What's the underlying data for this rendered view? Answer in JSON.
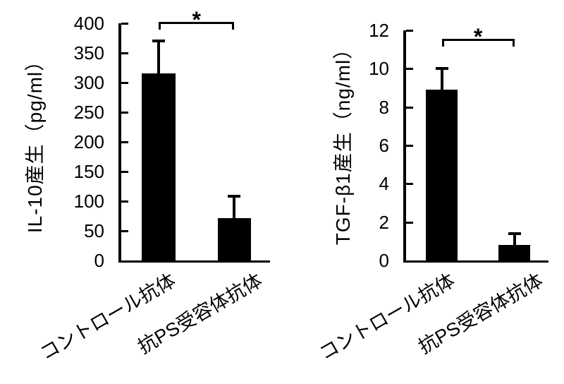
{
  "figure": {
    "background_color": "#ffffff",
    "ink_color": "#000000",
    "description_note": ""
  },
  "chart_data": [
    {
      "type": "bar",
      "title": "",
      "ylabel": "IL-10産生（pg/ml）",
      "xlabel": "",
      "categories": [
        "コントロール抗体",
        "抗PS受容体抗体"
      ],
      "values": [
        315,
        72
      ],
      "errors_upper": [
        55,
        36
      ],
      "ylim": [
        0,
        400
      ],
      "ytick_step": 50,
      "yticks": [
        0,
        50,
        100,
        150,
        200,
        250,
        300,
        350,
        400
      ],
      "bar_color": "#000000",
      "grid": false,
      "legend": null,
      "significance": {
        "label": "*",
        "between": [
          0,
          1
        ]
      }
    },
    {
      "type": "bar",
      "title": "",
      "ylabel": "TGF-β1産生（ng/ml）",
      "xlabel": "",
      "categories": [
        "コントロール抗体",
        "抗PS受容体抗体"
      ],
      "values": [
        8.9,
        0.8
      ],
      "errors_upper": [
        1.1,
        0.6
      ],
      "ylim": [
        0,
        12
      ],
      "ytick_step": 2,
      "yticks": [
        0,
        2,
        4,
        6,
        8,
        10,
        12
      ],
      "bar_color": "#000000",
      "grid": false,
      "legend": null,
      "significance": {
        "label": "*",
        "between": [
          0,
          1
        ]
      }
    }
  ]
}
